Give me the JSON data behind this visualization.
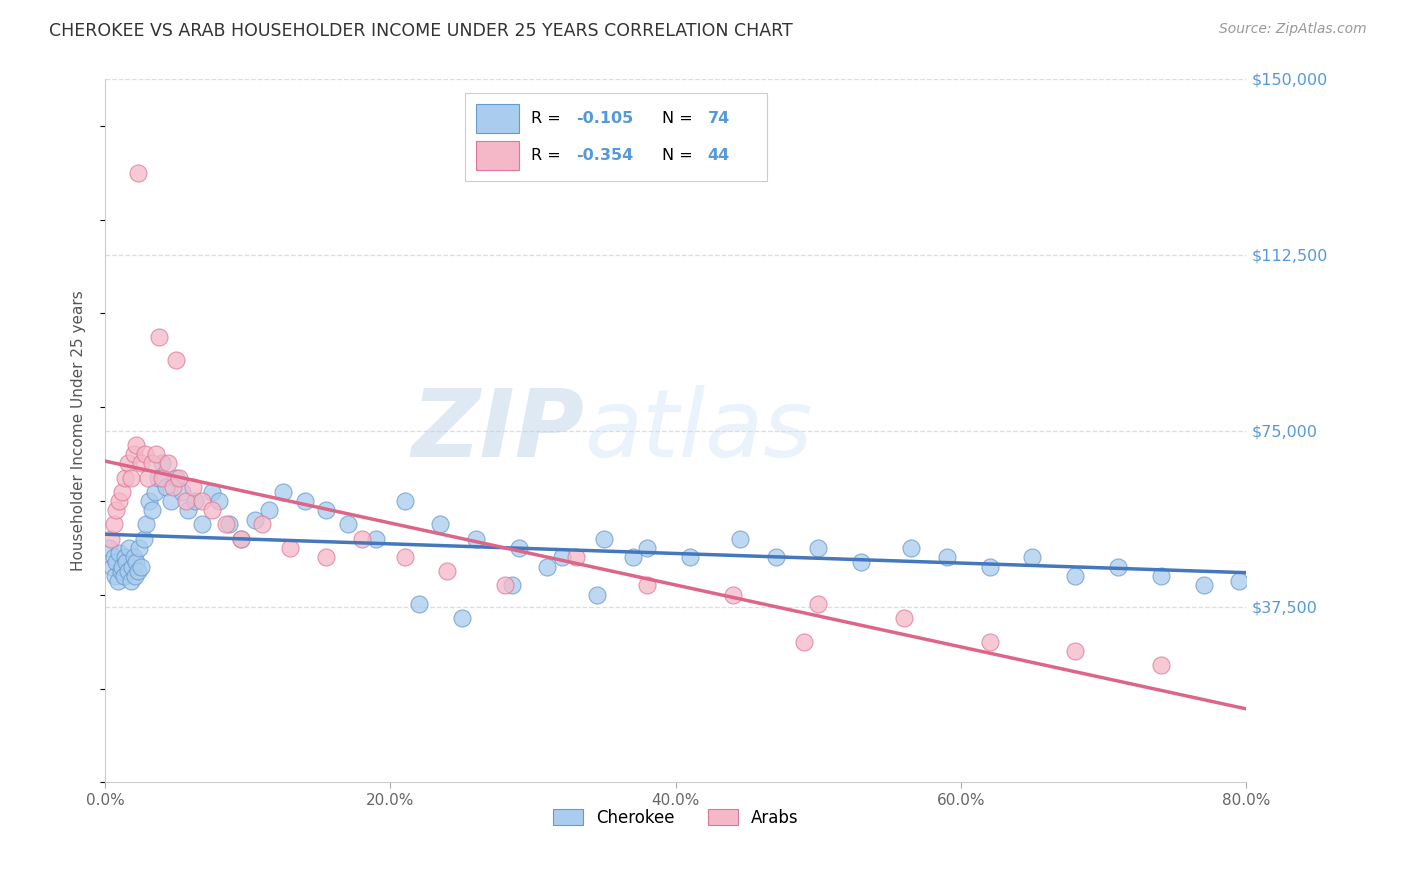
{
  "title": "CHEROKEE VS ARAB HOUSEHOLDER INCOME UNDER 25 YEARS CORRELATION CHART",
  "source": "Source: ZipAtlas.com",
  "ylabel": "Householder Income Under 25 years",
  "cherokee_R": -0.105,
  "cherokee_N": 74,
  "arab_R": -0.354,
  "arab_N": 44,
  "cherokee_color": "#aaccee",
  "arab_color": "#f5b8c8",
  "cherokee_edge": "#6699cc",
  "arab_edge": "#dd7799",
  "cherokee_line": "#4477bb",
  "arab_line": "#dd6688",
  "title_color": "#333333",
  "ytick_color": "#5599dd",
  "grid_color": "#dddddd",
  "R_color": "#5599dd",
  "N_color": "#5599dd",
  "xlim": [
    0.0,
    80.0
  ],
  "ylim": [
    0,
    150000
  ],
  "yticks": [
    0,
    37500,
    75000,
    112500,
    150000
  ],
  "ytick_labels": [
    "",
    "$37,500",
    "$75,000",
    "$112,500",
    "$150,000"
  ],
  "xticks": [
    0,
    20,
    40,
    60,
    80
  ],
  "xtick_labels": [
    "0.0%",
    "20.0%",
    "40.0%",
    "60.0%",
    "80.0%"
  ],
  "watermark_ZIP": "ZIP",
  "watermark_atlas": "atlas",
  "cherokee_x": [
    0.3,
    0.5,
    0.6,
    0.7,
    0.8,
    0.9,
    1.0,
    1.1,
    1.2,
    1.3,
    1.4,
    1.5,
    1.6,
    1.7,
    1.8,
    1.9,
    2.0,
    2.1,
    2.2,
    2.3,
    2.4,
    2.5,
    2.7,
    2.9,
    3.1,
    3.3,
    3.5,
    3.7,
    4.0,
    4.3,
    4.6,
    5.0,
    5.4,
    5.8,
    6.3,
    6.8,
    7.5,
    8.0,
    8.7,
    9.5,
    10.5,
    11.5,
    12.5,
    14.0,
    15.5,
    17.0,
    19.0,
    21.0,
    23.5,
    26.0,
    29.0,
    32.0,
    35.0,
    38.0,
    41.0,
    44.5,
    47.0,
    50.0,
    53.0,
    56.5,
    59.0,
    62.0,
    65.0,
    68.0,
    71.0,
    74.0,
    77.0,
    79.5,
    22.0,
    25.0,
    28.5,
    31.0,
    34.5,
    37.0
  ],
  "cherokee_y": [
    50000,
    46000,
    48000,
    44000,
    47000,
    43000,
    49000,
    45000,
    46000,
    44000,
    48000,
    47000,
    45000,
    50000,
    43000,
    46000,
    48000,
    44000,
    47000,
    45000,
    50000,
    46000,
    52000,
    55000,
    60000,
    58000,
    62000,
    65000,
    68000,
    63000,
    60000,
    65000,
    62000,
    58000,
    60000,
    55000,
    62000,
    60000,
    55000,
    52000,
    56000,
    58000,
    62000,
    60000,
    58000,
    55000,
    52000,
    60000,
    55000,
    52000,
    50000,
    48000,
    52000,
    50000,
    48000,
    52000,
    48000,
    50000,
    47000,
    50000,
    48000,
    46000,
    48000,
    44000,
    46000,
    44000,
    42000,
    43000,
    38000,
    35000,
    42000,
    46000,
    40000,
    48000
  ],
  "arab_x": [
    0.4,
    0.6,
    0.8,
    1.0,
    1.2,
    1.4,
    1.6,
    1.8,
    2.0,
    2.2,
    2.5,
    2.8,
    3.0,
    3.3,
    3.6,
    4.0,
    4.4,
    4.8,
    5.2,
    5.7,
    6.2,
    6.8,
    7.5,
    8.5,
    9.5,
    11.0,
    13.0,
    15.5,
    18.0,
    21.0,
    24.0,
    28.0,
    33.0,
    38.0,
    44.0,
    50.0,
    56.0,
    62.0,
    68.0,
    74.0,
    2.3,
    3.8,
    5.0,
    49.0
  ],
  "arab_y": [
    52000,
    55000,
    58000,
    60000,
    62000,
    65000,
    68000,
    65000,
    70000,
    72000,
    68000,
    70000,
    65000,
    68000,
    70000,
    65000,
    68000,
    63000,
    65000,
    60000,
    63000,
    60000,
    58000,
    55000,
    52000,
    55000,
    50000,
    48000,
    52000,
    48000,
    45000,
    42000,
    48000,
    42000,
    40000,
    38000,
    35000,
    30000,
    28000,
    25000,
    130000,
    95000,
    90000,
    30000
  ]
}
